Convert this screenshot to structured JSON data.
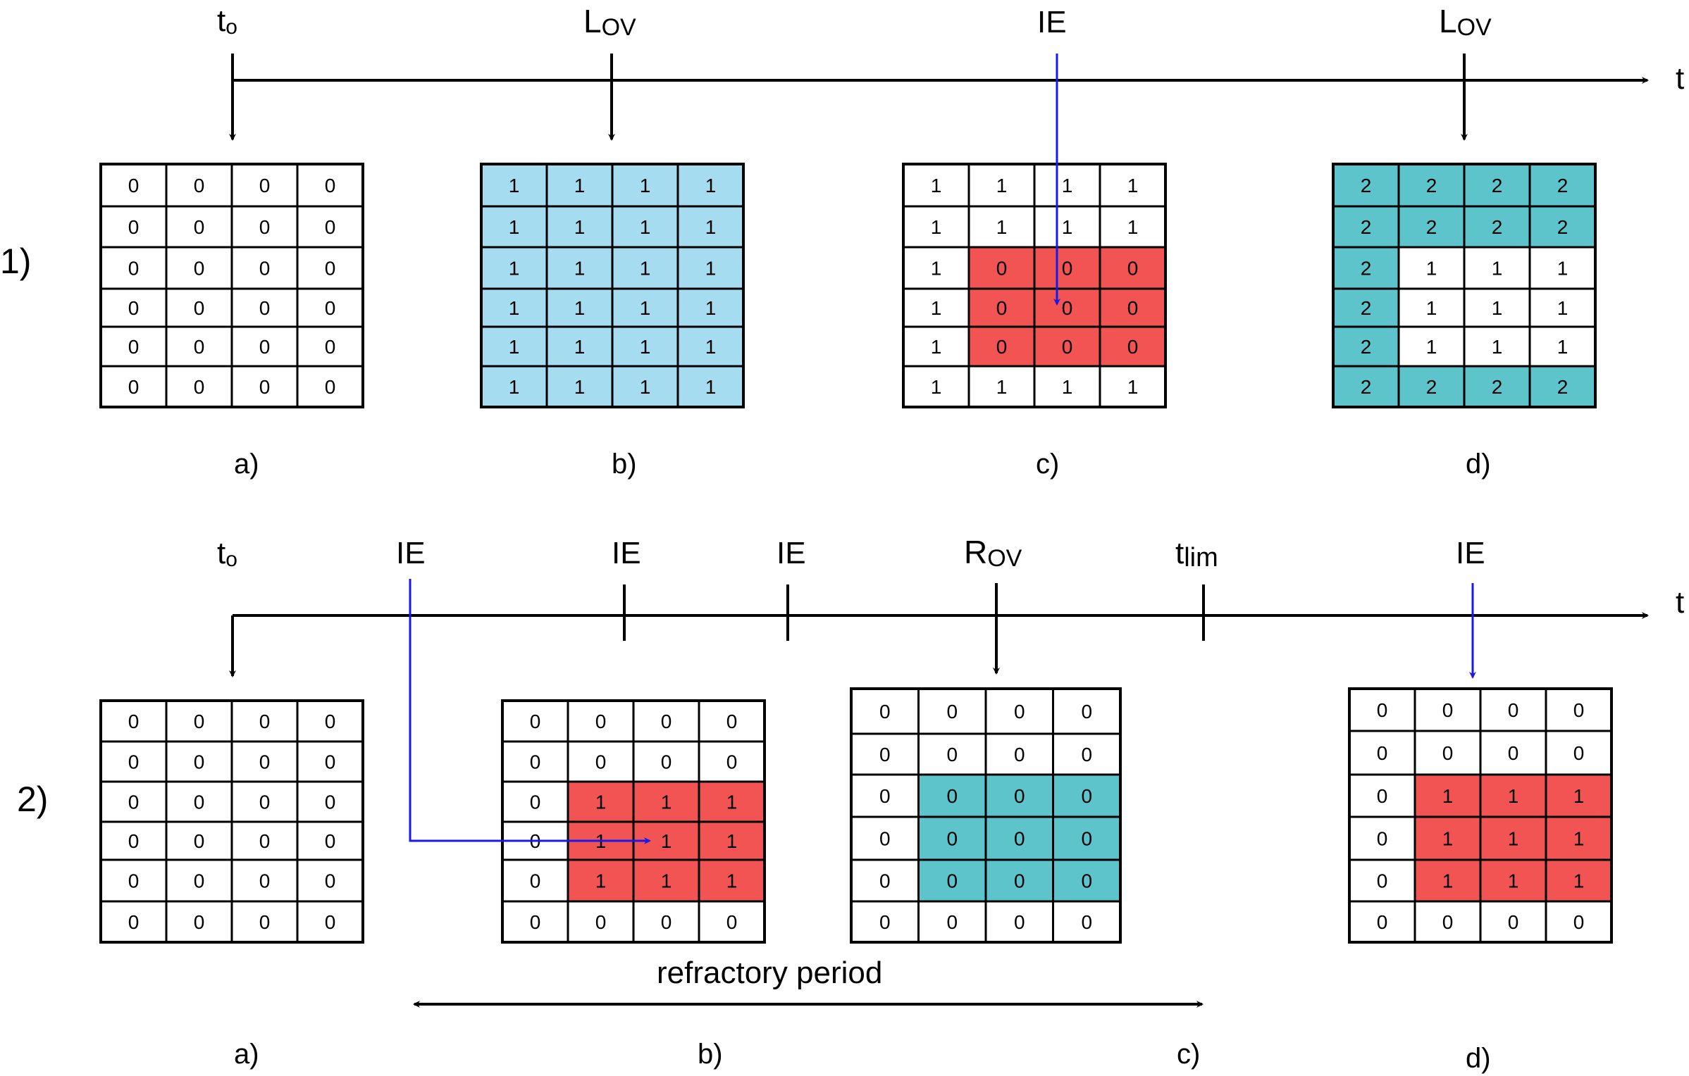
{
  "colors": {
    "light_blue": "#a6dcef",
    "teal": "#5ec4cc",
    "red": "#f25454",
    "white": "#ffffff",
    "blue_arrow": "#1a1ae6"
  },
  "panel_labels": [
    "a)",
    "b)",
    "c)",
    "d)"
  ],
  "row1": {
    "label": "1)",
    "time_label": "t",
    "events": [
      {
        "id": "r1-t0",
        "main": "t",
        "sub": "o"
      },
      {
        "id": "r1-lov-1",
        "main": "L",
        "sub": "OV"
      },
      {
        "id": "r1-ie",
        "main": "IE",
        "sub": ""
      },
      {
        "id": "r1-lov-2",
        "main": "L",
        "sub": "OV"
      }
    ],
    "grids": [
      {
        "values": [
          [
            0,
            0,
            0,
            0
          ],
          [
            0,
            0,
            0,
            0
          ],
          [
            0,
            0,
            0,
            0
          ],
          [
            0,
            0,
            0,
            0
          ],
          [
            0,
            0,
            0,
            0
          ],
          [
            0,
            0,
            0,
            0
          ]
        ],
        "colors": [
          [
            "w",
            "w",
            "w",
            "w"
          ],
          [
            "w",
            "w",
            "w",
            "w"
          ],
          [
            "w",
            "w",
            "w",
            "w"
          ],
          [
            "w",
            "w",
            "w",
            "w"
          ],
          [
            "w",
            "w",
            "w",
            "w"
          ],
          [
            "w",
            "w",
            "w",
            "w"
          ]
        ]
      },
      {
        "values": [
          [
            1,
            1,
            1,
            1
          ],
          [
            1,
            1,
            1,
            1
          ],
          [
            1,
            1,
            1,
            1
          ],
          [
            1,
            1,
            1,
            1
          ],
          [
            1,
            1,
            1,
            1
          ],
          [
            1,
            1,
            1,
            1
          ]
        ],
        "colors": [
          [
            "b",
            "b",
            "b",
            "b"
          ],
          [
            "b",
            "b",
            "b",
            "b"
          ],
          [
            "b",
            "b",
            "b",
            "b"
          ],
          [
            "b",
            "b",
            "b",
            "b"
          ],
          [
            "b",
            "b",
            "b",
            "b"
          ],
          [
            "b",
            "b",
            "b",
            "b"
          ]
        ]
      },
      {
        "values": [
          [
            1,
            1,
            1,
            1
          ],
          [
            1,
            1,
            1,
            1
          ],
          [
            1,
            0,
            0,
            0
          ],
          [
            1,
            0,
            0,
            0
          ],
          [
            1,
            0,
            0,
            0
          ],
          [
            1,
            1,
            1,
            1
          ]
        ],
        "colors": [
          [
            "w",
            "w",
            "w",
            "w"
          ],
          [
            "w",
            "w",
            "w",
            "w"
          ],
          [
            "w",
            "r",
            "r",
            "r"
          ],
          [
            "w",
            "r",
            "r",
            "r"
          ],
          [
            "w",
            "r",
            "r",
            "r"
          ],
          [
            "w",
            "w",
            "w",
            "w"
          ]
        ]
      },
      {
        "values": [
          [
            2,
            2,
            2,
            2
          ],
          [
            2,
            2,
            2,
            2
          ],
          [
            2,
            1,
            1,
            1
          ],
          [
            2,
            1,
            1,
            1
          ],
          [
            2,
            1,
            1,
            1
          ],
          [
            2,
            2,
            2,
            2
          ]
        ],
        "colors": [
          [
            "t",
            "t",
            "t",
            "t"
          ],
          [
            "t",
            "t",
            "t",
            "t"
          ],
          [
            "t",
            "w",
            "w",
            "w"
          ],
          [
            "t",
            "w",
            "w",
            "w"
          ],
          [
            "t",
            "w",
            "w",
            "w"
          ],
          [
            "t",
            "t",
            "t",
            "t"
          ]
        ]
      }
    ]
  },
  "row2": {
    "label": "2)",
    "time_label": "t",
    "events": [
      {
        "id": "r2-t0",
        "main": "t",
        "sub": "o"
      },
      {
        "id": "r2-ie-1",
        "main": "IE",
        "sub": ""
      },
      {
        "id": "r2-ie-2",
        "main": "IE",
        "sub": ""
      },
      {
        "id": "r2-ie-3",
        "main": "IE",
        "sub": ""
      },
      {
        "id": "r2-rov",
        "main": "R",
        "sub": "OV"
      },
      {
        "id": "r2-tlim",
        "main": "t",
        "sub": "lim"
      },
      {
        "id": "r2-ie-4",
        "main": "IE",
        "sub": ""
      }
    ],
    "refractory_label": "refractory period",
    "grids": [
      {
        "values": [
          [
            0,
            0,
            0,
            0
          ],
          [
            0,
            0,
            0,
            0
          ],
          [
            0,
            0,
            0,
            0
          ],
          [
            0,
            0,
            0,
            0
          ],
          [
            0,
            0,
            0,
            0
          ],
          [
            0,
            0,
            0,
            0
          ]
        ],
        "colors": [
          [
            "w",
            "w",
            "w",
            "w"
          ],
          [
            "w",
            "w",
            "w",
            "w"
          ],
          [
            "w",
            "w",
            "w",
            "w"
          ],
          [
            "w",
            "w",
            "w",
            "w"
          ],
          [
            "w",
            "w",
            "w",
            "w"
          ],
          [
            "w",
            "w",
            "w",
            "w"
          ]
        ]
      },
      {
        "values": [
          [
            0,
            0,
            0,
            0
          ],
          [
            0,
            0,
            0,
            0
          ],
          [
            0,
            1,
            1,
            1
          ],
          [
            0,
            1,
            1,
            1
          ],
          [
            0,
            1,
            1,
            1
          ],
          [
            0,
            0,
            0,
            0
          ]
        ],
        "colors": [
          [
            "w",
            "w",
            "w",
            "w"
          ],
          [
            "w",
            "w",
            "w",
            "w"
          ],
          [
            "w",
            "r",
            "r",
            "r"
          ],
          [
            "w",
            "r",
            "r",
            "r"
          ],
          [
            "w",
            "r",
            "r",
            "r"
          ],
          [
            "w",
            "w",
            "w",
            "w"
          ]
        ]
      },
      {
        "values": [
          [
            0,
            0,
            0,
            0
          ],
          [
            0,
            0,
            0,
            0
          ],
          [
            0,
            0,
            0,
            0
          ],
          [
            0,
            0,
            0,
            0
          ],
          [
            0,
            0,
            0,
            0
          ],
          [
            0,
            0,
            0,
            0
          ]
        ],
        "colors": [
          [
            "w",
            "w",
            "w",
            "w"
          ],
          [
            "w",
            "w",
            "w",
            "w"
          ],
          [
            "w",
            "t",
            "t",
            "t"
          ],
          [
            "w",
            "t",
            "t",
            "t"
          ],
          [
            "w",
            "t",
            "t",
            "t"
          ],
          [
            "w",
            "w",
            "w",
            "w"
          ]
        ]
      },
      {
        "values": [
          [
            0,
            0,
            0,
            0
          ],
          [
            0,
            0,
            0,
            0
          ],
          [
            0,
            1,
            1,
            1
          ],
          [
            0,
            1,
            1,
            1
          ],
          [
            0,
            1,
            1,
            1
          ],
          [
            0,
            0,
            0,
            0
          ]
        ],
        "colors": [
          [
            "w",
            "w",
            "w",
            "w"
          ],
          [
            "w",
            "w",
            "w",
            "w"
          ],
          [
            "w",
            "r",
            "r",
            "r"
          ],
          [
            "w",
            "r",
            "r",
            "r"
          ],
          [
            "w",
            "r",
            "r",
            "r"
          ],
          [
            "w",
            "w",
            "w",
            "w"
          ]
        ]
      }
    ]
  }
}
